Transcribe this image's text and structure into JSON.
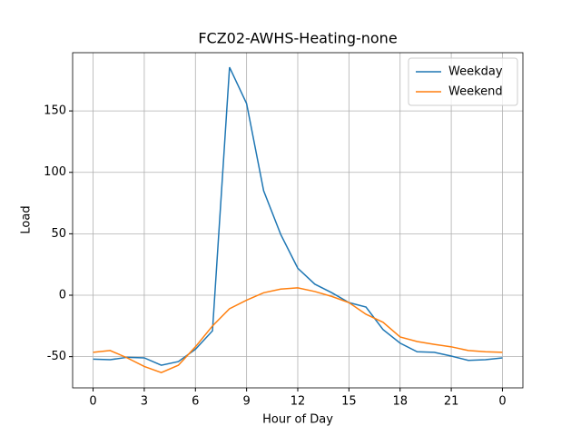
{
  "chart_data": {
    "type": "line",
    "title": "FCZ02-AWHS-Heating-none",
    "xlabel": "Hour of Day",
    "ylabel": "Load",
    "x": [
      0,
      1,
      2,
      3,
      4,
      5,
      6,
      7,
      8,
      9,
      10,
      11,
      12,
      13,
      14,
      15,
      16,
      17,
      18,
      19,
      20,
      21,
      22,
      23,
      24
    ],
    "series": [
      {
        "name": "Weekday",
        "color": "#1f77b4",
        "values": [
          -52,
          -52.5,
          -50.5,
          -51,
          -57,
          -54,
          -44,
          -29,
          185.5,
          156,
          85,
          49.5,
          22,
          9,
          2,
          -6,
          -9.6,
          -28,
          -39,
          -46,
          -46.5,
          -49.5,
          -53,
          -52.5,
          -51
        ]
      },
      {
        "name": "Weekend",
        "color": "#ff7f0e",
        "values": [
          -46.5,
          -45,
          -51,
          -58,
          -63,
          -57,
          -42,
          -25,
          -11,
          -4,
          2,
          5,
          6,
          3,
          -1,
          -6,
          -15.5,
          -22,
          -34,
          -37.7,
          -40,
          -42,
          -45,
          -46,
          -46.5
        ]
      }
    ],
    "xlim": [
      -1.2,
      25.2
    ],
    "ylim": [
      -75.4,
      197.4
    ],
    "xticks": [
      0,
      3,
      6,
      9,
      12,
      15,
      18,
      21,
      {
        "value": 24,
        "label": "0"
      }
    ],
    "yticks": [
      -50,
      0,
      50,
      100,
      150
    ],
    "grid": true,
    "legend": "upper right"
  }
}
